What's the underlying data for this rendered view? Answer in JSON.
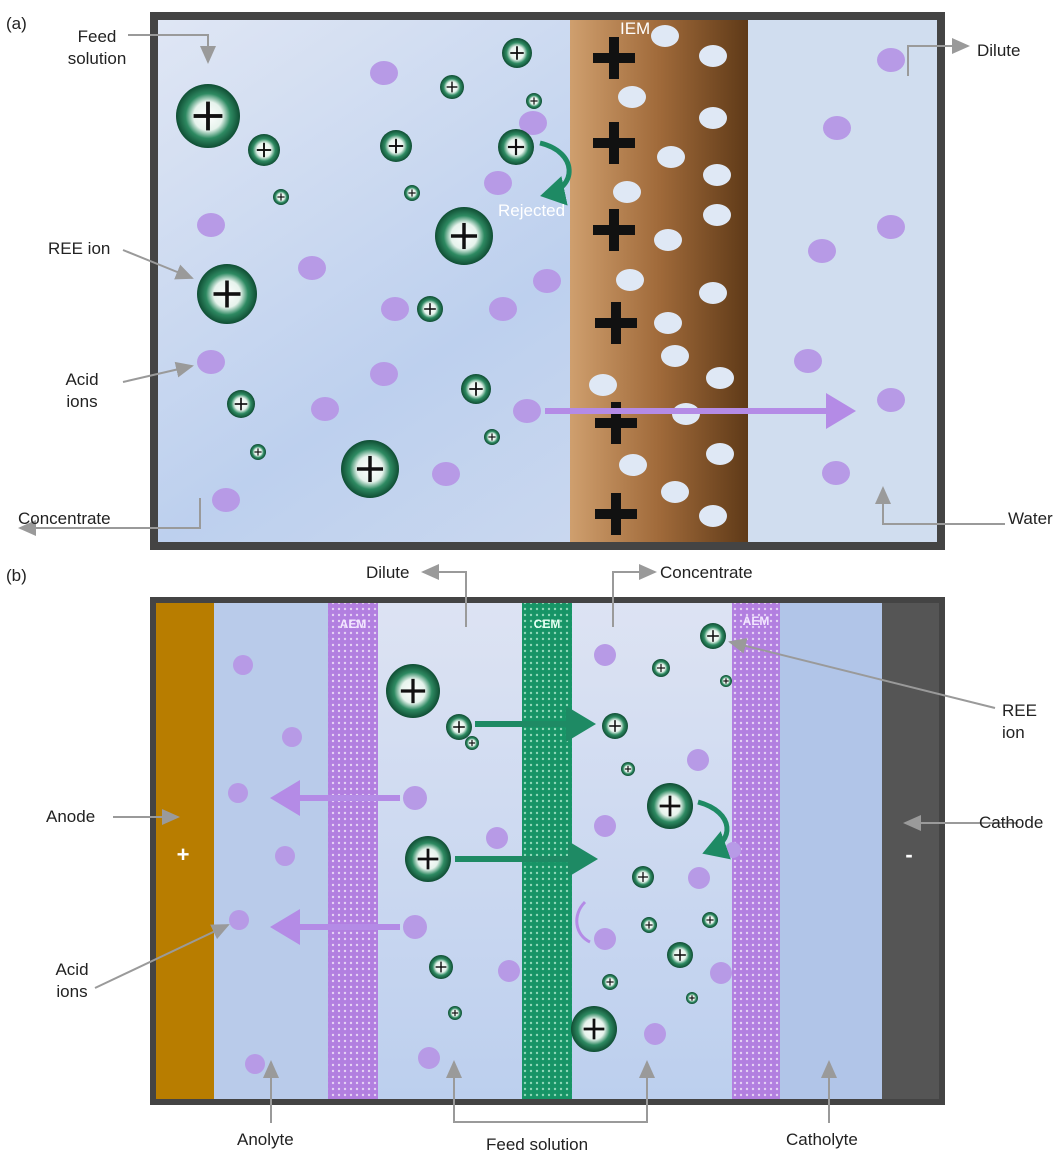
{
  "panel_a": {
    "tag": "(a)",
    "labels": {
      "feed_solution_1": "Feed",
      "feed_solution_2": "solution",
      "ree_ion": "REE ion",
      "acid_ions_1": "Acid",
      "acid_ions_2": "ions",
      "concentrate": "Concentrate",
      "dilute": "Dilute",
      "water": "Water",
      "iem": "IEM",
      "rejected": "Rejected"
    }
  },
  "panel_b": {
    "tag": "(b)",
    "labels": {
      "dilute": "Dilute",
      "concentrate": "Concentrate",
      "ree_ion": "REE ion",
      "anode": "Anode",
      "cathode": "Cathode",
      "acid_ions_1": "Acid",
      "acid_ions_2": "ions",
      "anolyte": "Anolyte",
      "feed_solution": "Feed solution",
      "catholyte": "Catholyte",
      "aem_left": "AEM",
      "cem": "CEM",
      "aem_right": "AEM",
      "anode_sign": "+",
      "cathode_sign": "-"
    }
  },
  "colors": {
    "frame": "#454545",
    "solution": "#c9d9f0",
    "membrane_dark": "#6b4420",
    "membrane_light": "#c99a6b",
    "aem": "#b888e0",
    "cem": "#1e9a6a",
    "anode": "#b87d00",
    "cathode": "#555555",
    "ion_green": "#1f6b4a",
    "acid_ion": "#b79ae6",
    "arrow_gray": "#999999",
    "arrow_purple": "#b48be6",
    "arrow_green": "#1e8a64"
  },
  "icons": [
    "plus-icon",
    "minus-icon",
    "arrow-icon"
  ]
}
